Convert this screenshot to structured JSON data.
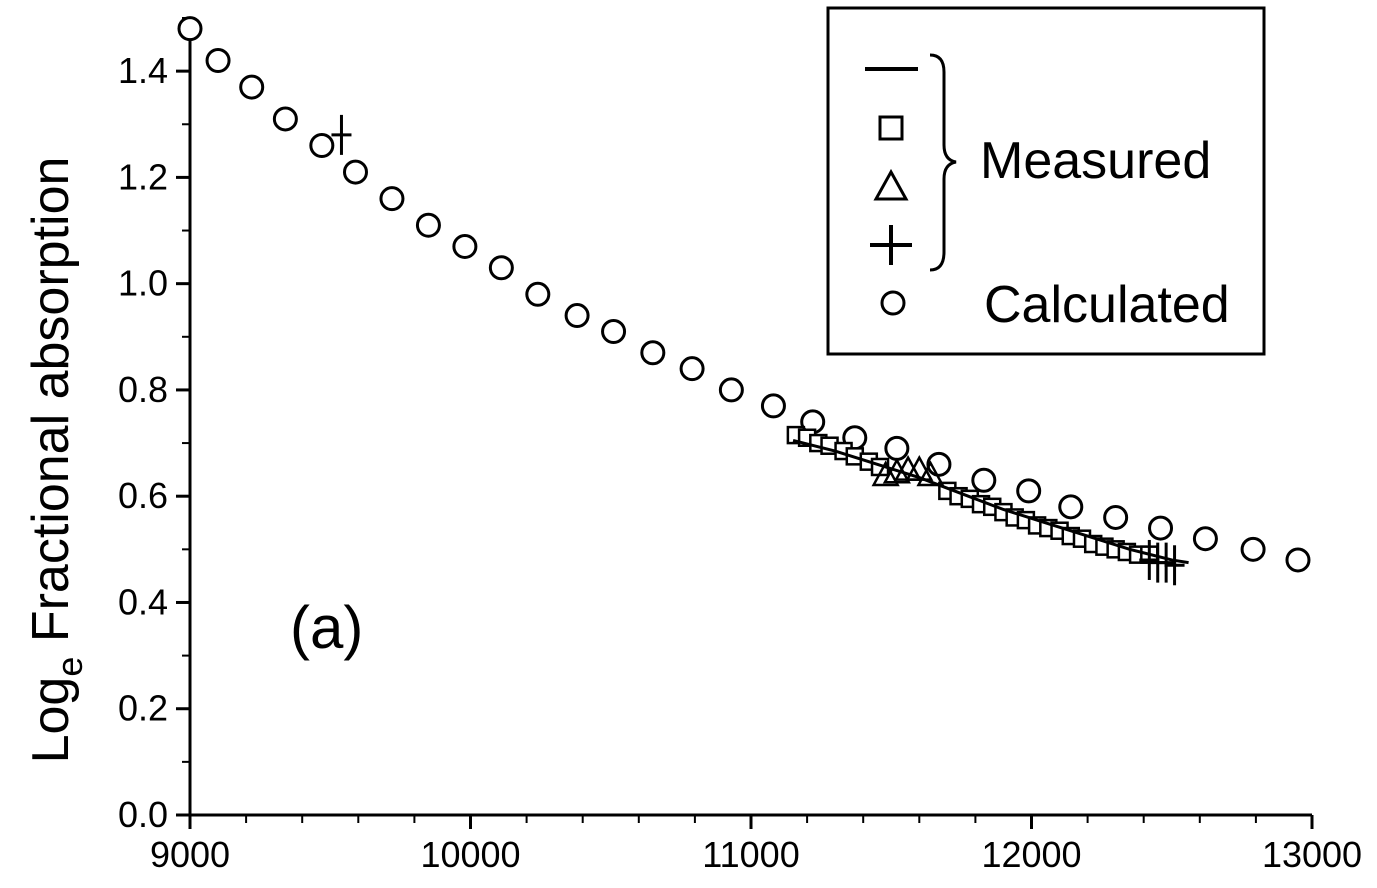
{
  "chart_data": {
    "type": "scatter",
    "title": "",
    "xlabel": "",
    "ylabel": "Fractional absorption",
    "ylabel_prefix": "Log",
    "ylabel_subscript": "e",
    "panel_label": "(a)",
    "xlim": [
      9000,
      13000
    ],
    "ylim": [
      0.0,
      1.5
    ],
    "x_ticks": [
      9000,
      10000,
      11000,
      12000,
      13000
    ],
    "y_ticks": [
      0.0,
      0.2,
      0.4,
      0.6,
      0.8,
      1.0,
      1.2,
      1.4
    ],
    "x_tick_labels": [
      "9000",
      "10000",
      "11000",
      "12000",
      "13000"
    ],
    "y_tick_labels": [
      "0.0",
      "0.2",
      "0.4",
      "0.6",
      "0.8",
      "1.0",
      "1.2",
      "1.4"
    ],
    "legend_position": "top-right",
    "legend": {
      "group_label": "Measured",
      "calculated_label": "Calculated"
    },
    "series": [
      {
        "name": "Calculated",
        "marker": "circle",
        "x": [
          9000,
          9100,
          9220,
          9340,
          9470,
          9590,
          9720,
          9850,
          9980,
          10110,
          10240,
          10380,
          10510,
          10650,
          10790,
          10930,
          11080,
          11220,
          11370,
          11520,
          11670,
          11830,
          11990,
          12140,
          12300,
          12460,
          12620,
          12790,
          12950
        ],
        "y": [
          1.48,
          1.42,
          1.37,
          1.31,
          1.26,
          1.21,
          1.16,
          1.11,
          1.07,
          1.03,
          0.98,
          0.94,
          0.91,
          0.87,
          0.84,
          0.8,
          0.77,
          0.74,
          0.71,
          0.69,
          0.66,
          0.63,
          0.61,
          0.58,
          0.56,
          0.54,
          0.52,
          0.5,
          0.48
        ]
      },
      {
        "name": "Measured",
        "marker": "square",
        "x": [
          11160,
          11200,
          11240,
          11280,
          11330,
          11370,
          11420,
          11460,
          11700,
          11740,
          11780,
          11820,
          11860,
          11900,
          11940,
          11980,
          12020,
          12060,
          12100,
          12140,
          12180,
          12220,
          12260,
          12300,
          12340,
          12380,
          12420
        ],
        "y": [
          0.715,
          0.71,
          0.7,
          0.695,
          0.685,
          0.675,
          0.665,
          0.655,
          0.61,
          0.6,
          0.595,
          0.585,
          0.58,
          0.57,
          0.56,
          0.555,
          0.545,
          0.54,
          0.535,
          0.525,
          0.52,
          0.51,
          0.505,
          0.5,
          0.495,
          0.49,
          0.49
        ]
      },
      {
        "name": "Measured",
        "marker": "triangle",
        "x": [
          11480,
          11520,
          11560,
          11600,
          11640
        ],
        "y": [
          0.64,
          0.645,
          0.65,
          0.65,
          0.64
        ]
      },
      {
        "name": "Measured",
        "marker": "plus",
        "x": [
          9540,
          12420,
          12450,
          12480,
          12510
        ],
        "y": [
          1.28,
          0.48,
          0.475,
          0.475,
          0.47
        ]
      },
      {
        "name": "Measured",
        "marker": "line",
        "x": [
          11150,
          11300,
          11450,
          11600,
          11750,
          11900,
          12050,
          12200,
          12350,
          12500,
          12560
        ],
        "y": [
          0.705,
          0.685,
          0.66,
          0.635,
          0.605,
          0.575,
          0.55,
          0.525,
          0.5,
          0.48,
          0.475
        ]
      }
    ]
  }
}
